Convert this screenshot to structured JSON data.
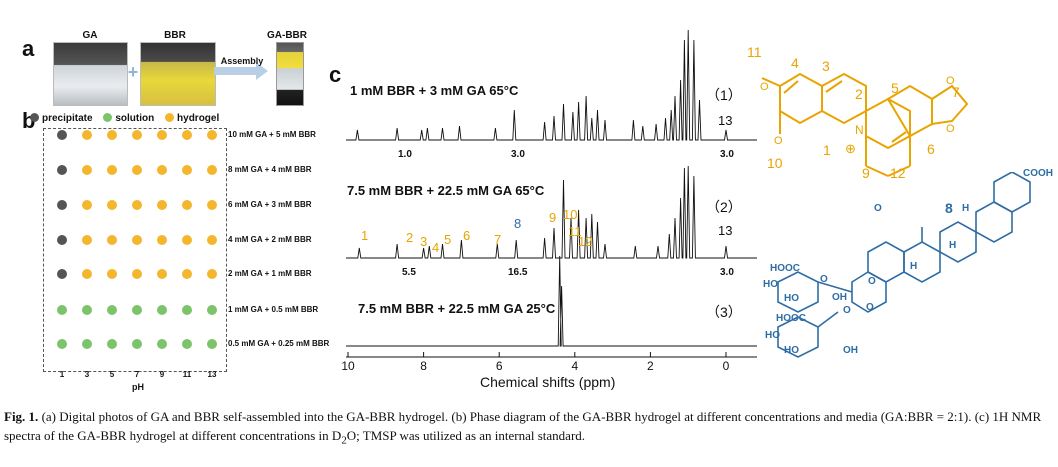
{
  "panels": {
    "a": "a",
    "b": "b",
    "c": "c"
  },
  "photos": {
    "ga_label": "GA",
    "bbr_label": "BBR",
    "plus": "+",
    "assembly_label": "Assembly",
    "gabbr_label": "GA-BBR"
  },
  "phase": {
    "legend": [
      {
        "label": "precipitate",
        "color": "#555555"
      },
      {
        "label": "solution",
        "color": "#7cc46a"
      },
      {
        "label": "hydrogel",
        "color": "#f4b62c"
      }
    ],
    "ph_values": [
      "1",
      "3",
      "5",
      "7",
      "9",
      "11",
      "13"
    ],
    "xlabel": "pH",
    "rows": [
      {
        "label": "10 mM GA + 5 mM BBR",
        "states": [
          "precipitate",
          "hydrogel",
          "hydrogel",
          "hydrogel",
          "hydrogel",
          "hydrogel",
          "hydrogel"
        ]
      },
      {
        "label": "8 mM GA + 4 mM BBR",
        "states": [
          "precipitate",
          "hydrogel",
          "hydrogel",
          "hydrogel",
          "hydrogel",
          "hydrogel",
          "hydrogel"
        ]
      },
      {
        "label": "6 mM GA + 3 mM BBR",
        "states": [
          "precipitate",
          "hydrogel",
          "hydrogel",
          "hydrogel",
          "hydrogel",
          "hydrogel",
          "hydrogel"
        ]
      },
      {
        "label": "4 mM GA + 2 mM BBR",
        "states": [
          "precipitate",
          "hydrogel",
          "hydrogel",
          "hydrogel",
          "hydrogel",
          "hydrogel",
          "hydrogel"
        ]
      },
      {
        "label": "2 mM GA + 1 mM BBR",
        "states": [
          "precipitate",
          "hydrogel",
          "hydrogel",
          "hydrogel",
          "hydrogel",
          "hydrogel",
          "hydrogel"
        ]
      },
      {
        "label": "1 mM GA + 0.5 mM BBR",
        "states": [
          "solution",
          "solution",
          "solution",
          "solution",
          "solution",
          "solution",
          "solution"
        ]
      },
      {
        "label": "0.5 mM GA + 0.25 mM BBR",
        "states": [
          "solution",
          "solution",
          "solution",
          "solution",
          "solution",
          "solution",
          "solution"
        ]
      }
    ]
  },
  "nmr": {
    "traces": [
      {
        "label": "1 mM BBR + 3 mM GA   65°C",
        "index": "（1）",
        "integrals": [
          "1.0",
          "3.0",
          "3.0"
        ],
        "side_num": "13"
      },
      {
        "label": "7.5 mM BBR + 22.5 mM GA   65°C",
        "index": "（2）",
        "integrals": [
          "5.5",
          "16.5",
          "3.0"
        ],
        "side_num": "13"
      },
      {
        "label": "7.5 mM BBR + 22.5 mM GA   25°C",
        "index": "（3）"
      }
    ],
    "peak_labels": [
      {
        "text": "1",
        "color": "#e8a400"
      },
      {
        "text": "2",
        "color": "#e8a400"
      },
      {
        "text": "3",
        "color": "#e8a400"
      },
      {
        "text": "4",
        "color": "#e8a400"
      },
      {
        "text": "5",
        "color": "#e8a400"
      },
      {
        "text": "6",
        "color": "#e8a400"
      },
      {
        "text": "7",
        "color": "#e8a400"
      },
      {
        "text": "8",
        "color": "#2e6da4"
      },
      {
        "text": "9",
        "color": "#e8a400"
      },
      {
        "text": "10",
        "color": "#e8a400"
      },
      {
        "text": "11",
        "color": "#e8a400"
      },
      {
        "text": "12",
        "color": "#e8a400"
      }
    ],
    "axis_ticks": [
      "10",
      "8",
      "6",
      "4",
      "2",
      "0"
    ],
    "xlabel": "Chemical shifts (ppm)"
  },
  "structures": {
    "bbr_numbers": [
      "11",
      "4",
      "3",
      "2",
      "5",
      "7",
      "1",
      "10",
      "9",
      "12",
      "6"
    ],
    "bbr_charge": "⊕",
    "bbr_atoms": {
      "o": "O",
      "n": "N"
    },
    "ga_number": "8",
    "ga_labels": [
      "COOH",
      "O",
      "H",
      "H",
      "H",
      "HOOC",
      "HO",
      "HO",
      "OH",
      "O",
      "O",
      "HOOC",
      "HO",
      "HO",
      "OH",
      "O",
      "O"
    ]
  },
  "caption": {
    "fig": "Fig. 1.",
    "part1": " (a) Digital photos of GA and BBR self-assembled into the GA-BBR hydrogel. (b) Phase diagram of the GA-BBR hydrogel at different concentrations and media (GA:BBR = 2:1). (c) 1H NMR spectra of the GA-BBR hydrogel at different concentrations in D",
    "sub": "2",
    "part2": "O; TMSP was utilized as an internal standard."
  }
}
